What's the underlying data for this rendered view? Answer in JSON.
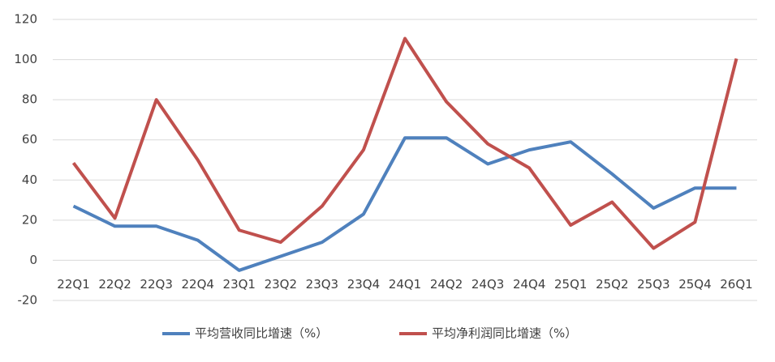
{
  "chart_data": {
    "type": "line",
    "categories": [
      "22Q1",
      "22Q2",
      "22Q3",
      "22Q4",
      "23Q1",
      "23Q2",
      "23Q3",
      "23Q4",
      "24Q1",
      "24Q2",
      "24Q3",
      "24Q4",
      "25Q1",
      "25Q2",
      "25Q3",
      "25Q4",
      "26Q1"
    ],
    "series": [
      {
        "name": "平均营收同比增速（%）",
        "color": "#4f81bd",
        "values": [
          27,
          17,
          17,
          10,
          -5,
          2,
          9,
          23,
          61,
          61,
          48,
          55,
          59,
          43,
          26,
          36,
          36
        ]
      },
      {
        "name": "平均净利润同比增速（%）",
        "color": "#c0504d",
        "values": [
          48.5,
          21,
          80,
          50,
          15,
          9,
          27,
          55,
          110.5,
          79,
          58,
          46,
          17.5,
          29,
          6,
          19,
          100.5
        ]
      }
    ],
    "ylim": [
      -20,
      120
    ],
    "yticks": [
      -20,
      0,
      20,
      40,
      60,
      80,
      100,
      120
    ],
    "grid": true,
    "legend": "bottom"
  }
}
